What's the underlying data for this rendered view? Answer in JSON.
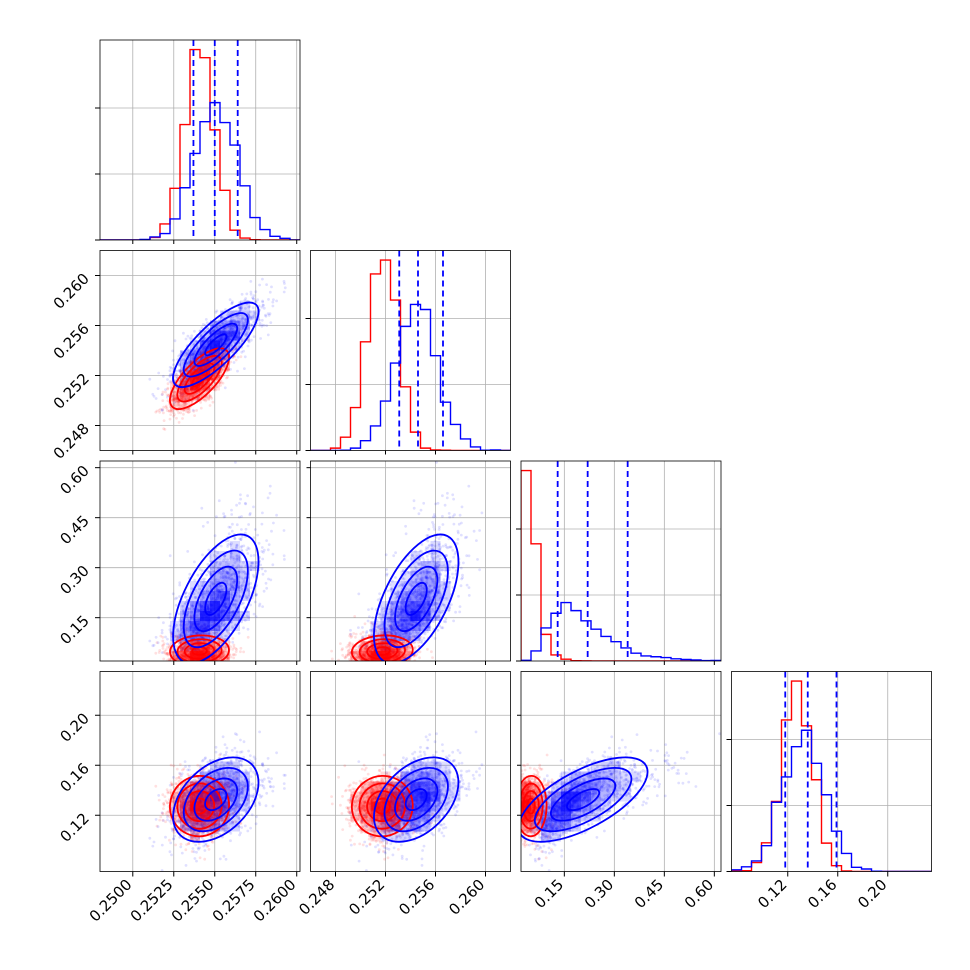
{
  "chart_data": {
    "type": "corner",
    "grid": true,
    "colors": {
      "red_series": "#ff0000",
      "blue_series": "#0000ff",
      "grid": "#b0b0b0"
    },
    "parameters": [
      {
        "range": [
          0.248,
          0.2602
        ],
        "ticks": [
          0.25,
          0.2525,
          0.255,
          0.2575,
          0.26
        ],
        "tick_labels": [
          "0.2500",
          "0.2525",
          "0.2550",
          "0.2575",
          "0.2600"
        ]
      },
      {
        "range": [
          0.246,
          0.262
        ],
        "ticks": [
          0.248,
          0.252,
          0.256,
          0.26
        ],
        "tick_labels": [
          "0.248",
          "0.252",
          "0.256",
          "0.260"
        ]
      },
      {
        "range": [
          0.02,
          0.62
        ],
        "ticks": [
          0.15,
          0.3,
          0.45,
          0.6
        ],
        "tick_labels": [
          "0.15",
          "0.30",
          "0.45",
          "0.60"
        ]
      },
      {
        "range": [
          0.075,
          0.235
        ],
        "ticks": [
          0.12,
          0.16,
          0.2
        ],
        "tick_labels": [
          "0.12",
          "0.16",
          "0.20"
        ]
      }
    ],
    "series": [
      {
        "color": "red",
        "mean": [
          0.2541,
          0.2518,
          0.05,
          0.127
        ],
        "sd": [
          0.0009,
          0.0012,
          0.02,
          0.012
        ],
        "corr": [
          [
            1,
            0.7,
            0.1,
            0.0
          ],
          [
            0.7,
            1,
            0.1,
            0.0
          ],
          [
            0.1,
            0.1,
            1,
            0.0
          ],
          [
            0.0,
            0.0,
            0.0,
            1
          ]
        ]
      },
      {
        "color": "blue",
        "mean": [
          0.2551,
          0.2545,
          0.21,
          0.133
        ],
        "sd": [
          0.0013,
          0.0017,
          0.09,
          0.017
        ],
        "corr": [
          [
            1,
            0.8,
            0.6,
            0.4
          ],
          [
            0.8,
            1,
            0.65,
            0.55
          ],
          [
            0.6,
            0.65,
            1,
            0.7
          ],
          [
            0.4,
            0.55,
            0.7,
            1
          ]
        ]
      }
    ],
    "quantiles": [
      [
        0.2537,
        0.255,
        0.2564
      ],
      [
        0.2531,
        0.2546,
        0.2566
      ],
      [
        0.13,
        0.22,
        0.34
      ],
      [
        0.118,
        0.136,
        0.159
      ]
    ]
  }
}
